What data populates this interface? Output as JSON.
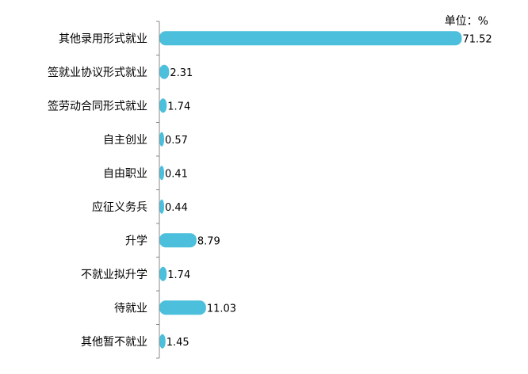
{
  "chart_data": {
    "type": "bar",
    "orientation": "horizontal",
    "unit": "单位：%",
    "categories": [
      "其他录用形式就业",
      "签就业协议形式就业",
      "签劳动合同形式就业",
      "自主创业",
      "自由职业",
      "应征义务兵",
      "升学",
      "不就业拟升学",
      "待就业",
      "其他暂不就业"
    ],
    "value_labels": [
      "71.52",
      "2.31",
      "1.74",
      "0.57",
      "0.41",
      "0.44",
      "8.79",
      "1.74",
      "11.03",
      "1.45"
    ],
    "values": [
      71.52,
      2.31,
      1.74,
      0.57,
      0.41,
      0.44,
      8.79,
      1.74,
      11.03,
      1.45
    ],
    "xlim": [
      0,
      75
    ],
    "grid": false,
    "legend": "none",
    "bar_color": "#4bbfdc",
    "axis_color": "#888888"
  }
}
